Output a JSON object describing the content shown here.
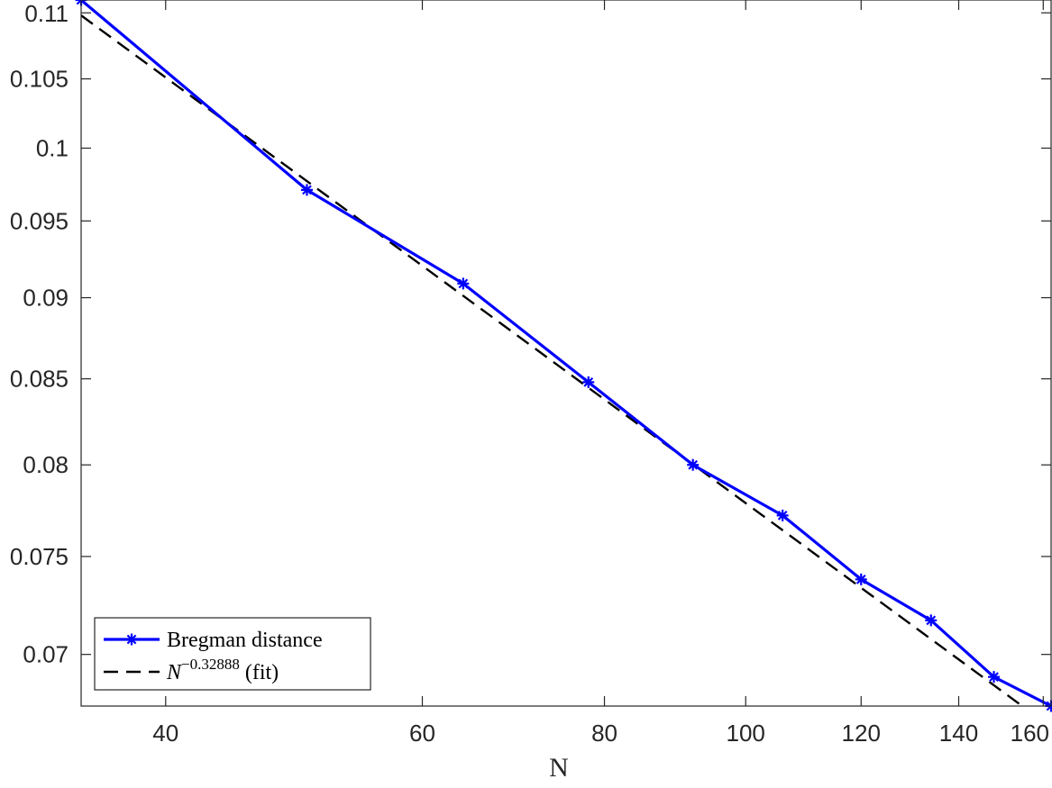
{
  "chart_data": {
    "type": "line",
    "xlabel": "N",
    "ylabel": "",
    "xscale": "log",
    "yscale": "log",
    "xlim": [
      35,
      162
    ],
    "ylim": [
      0.0675,
      0.111
    ],
    "xticks": [
      40,
      60,
      80,
      100,
      120,
      140,
      160
    ],
    "xtick_labels": [
      "40",
      "60",
      "80",
      "100",
      "120",
      "140",
      "160"
    ],
    "yticks": [
      0.07,
      0.075,
      0.08,
      0.085,
      0.09,
      0.095,
      0.1,
      0.105,
      0.11
    ],
    "ytick_labels": [
      "0.07",
      "0.075",
      "0.08",
      "0.085",
      "0.09",
      "0.095",
      "0.1",
      "0.105",
      "0.11"
    ],
    "grid": false,
    "legend_position": "bottom-left",
    "series": [
      {
        "name": "Bregman distance",
        "color": "#0000ff",
        "style": "solid",
        "marker": "asterisk",
        "x": [
          35,
          50,
          64,
          78,
          92,
          106,
          120,
          134,
          148,
          162
        ],
        "y": [
          0.111,
          0.0971,
          0.0909,
          0.0848,
          0.08,
          0.0772,
          0.0738,
          0.0717,
          0.0689,
          0.0675
        ]
      },
      {
        "name": "$N^{-0.32888}$ (fit)",
        "legend_base": "N",
        "legend_exponent": "−0.32888",
        "legend_suffix": " (fit)",
        "color": "#000000",
        "style": "dashed",
        "exponent": -0.32888,
        "x": [
          35,
          162
        ],
        "y": [
          0.1098,
          0.0665
        ]
      }
    ]
  }
}
